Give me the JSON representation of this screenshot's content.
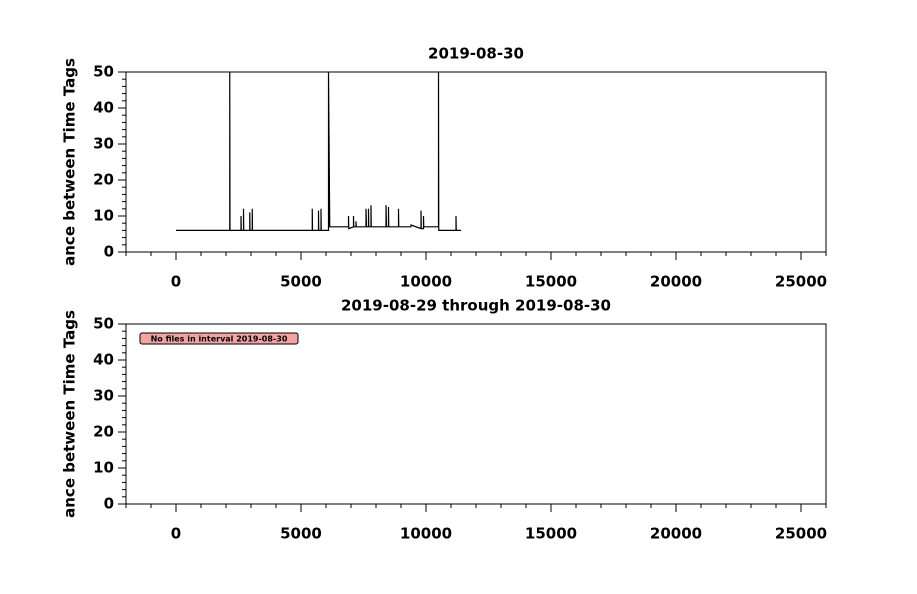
{
  "chart_data": [
    {
      "type": "line",
      "title": "2019-08-30",
      "ylabel": "ance between Time Tags",
      "xlim": [
        -2000,
        26000
      ],
      "ylim": [
        0,
        50
      ],
      "xticks": [
        0,
        5000,
        10000,
        15000,
        20000,
        25000
      ],
      "yticks": [
        0,
        10,
        20,
        30,
        40,
        50
      ],
      "x_minor_step": 1000,
      "y_minor_step": 2,
      "series": [
        {
          "color": "#000000",
          "x": [
            0,
            2150,
            2150,
            2160,
            2600,
            2600,
            2610,
            2700,
            2700,
            2710,
            2950,
            2950,
            2960,
            3050,
            3050,
            3060,
            5450,
            5450,
            5460,
            5700,
            5700,
            5710,
            5800,
            5800,
            5810,
            6100,
            6100,
            6150,
            6500,
            6900,
            6900,
            6910,
            7100,
            7100,
            7110,
            7200,
            7200,
            7210,
            7600,
            7600,
            7620,
            7700,
            7700,
            7710,
            7800,
            7800,
            7810,
            8400,
            8400,
            8420,
            8500,
            8500,
            8510,
            8900,
            8900,
            8910,
            9400,
            9400,
            9800,
            9800,
            9810,
            9900,
            9900,
            9910,
            10500,
            10500,
            10510,
            11200,
            11200,
            11210,
            11400
          ],
          "values": [
            6,
            6,
            50,
            6,
            6,
            10,
            6,
            6,
            12,
            6,
            6,
            11,
            6,
            6,
            12,
            6,
            6,
            12,
            6,
            6,
            11.5,
            6,
            6,
            12,
            6,
            6,
            50,
            7,
            7,
            7,
            10,
            6.5,
            7,
            10,
            7,
            7,
            8.5,
            7,
            7,
            12,
            7,
            7,
            12,
            7,
            7,
            13,
            7,
            7,
            13,
            7,
            7,
            12.5,
            7,
            7,
            12,
            7,
            7,
            7.5,
            6.5,
            11.5,
            6.5,
            6.5,
            10,
            7,
            7,
            50,
            6,
            6,
            10,
            6,
            6
          ]
        }
      ]
    },
    {
      "type": "line",
      "title": "2019-08-29 through 2019-08-30",
      "ylabel": "ance between Time Tags",
      "xlim": [
        -2000,
        26000
      ],
      "ylim": [
        0,
        50
      ],
      "xticks": [
        0,
        5000,
        10000,
        15000,
        20000,
        25000
      ],
      "yticks": [
        0,
        10,
        20,
        30,
        40,
        50
      ],
      "x_minor_step": 1000,
      "y_minor_step": 2,
      "annotation": "No files in interval 2019-08-30",
      "series": []
    }
  ]
}
